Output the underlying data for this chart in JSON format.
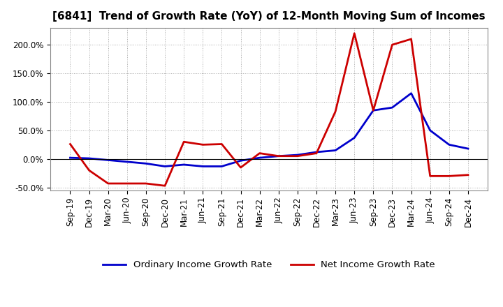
{
  "title": "[6841]  Trend of Growth Rate (YoY) of 12-Month Moving Sum of Incomes",
  "x_labels": [
    "Sep-19",
    "Dec-19",
    "Mar-20",
    "Jun-20",
    "Sep-20",
    "Dec-20",
    "Mar-21",
    "Jun-21",
    "Sep-21",
    "Dec-21",
    "Mar-22",
    "Jun-22",
    "Sep-22",
    "Dec-22",
    "Mar-23",
    "Jun-23",
    "Sep-23",
    "Dec-23",
    "Mar-24",
    "Jun-24",
    "Sep-24",
    "Dec-24"
  ],
  "ordinary_income": [
    2.0,
    1.0,
    -2.0,
    -5.0,
    -8.0,
    -13.0,
    -10.0,
    -13.0,
    -13.0,
    -3.0,
    2.0,
    5.0,
    7.0,
    12.0,
    15.0,
    37.0,
    85.0,
    90.0,
    115.0,
    50.0,
    25.0,
    18.0
  ],
  "net_income": [
    26.0,
    -20.0,
    -43.0,
    -43.0,
    -43.0,
    -47.0,
    30.0,
    25.0,
    26.0,
    -15.0,
    10.0,
    5.0,
    5.0,
    10.0,
    83.0,
    220.0,
    85.0,
    200.0,
    210.0,
    -30.0,
    -30.0,
    -28.0
  ],
  "ordinary_color": "#0000cc",
  "net_color": "#cc0000",
  "background_color": "#ffffff",
  "plot_bg_color": "#ffffff",
  "grid_color": "#aaaaaa",
  "ylim": [
    -55,
    230
  ],
  "yticks": [
    -50,
    0,
    50,
    100,
    150,
    200
  ],
  "legend_ordinary": "Ordinary Income Growth Rate",
  "legend_net": "Net Income Growth Rate",
  "title_fontsize": 11,
  "tick_fontsize": 8.5,
  "legend_fontsize": 9.5
}
